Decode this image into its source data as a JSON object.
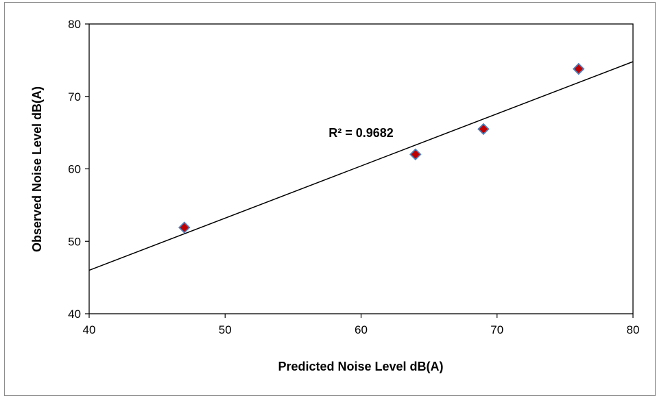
{
  "chart_data": {
    "type": "scatter",
    "xlabel": "Predicted Noise Level dB(A)",
    "ylabel": "Observed Noise Level dB(A)",
    "xlim": [
      40,
      80
    ],
    "ylim": [
      40,
      80
    ],
    "x_ticks": [
      40,
      50,
      60,
      70,
      80
    ],
    "y_ticks": [
      40,
      50,
      60,
      70,
      80
    ],
    "grid": false,
    "legend": "none",
    "series": [
      {
        "points": [
          {
            "x": 47,
            "y": 51.9
          },
          {
            "x": 64,
            "y": 62.0
          },
          {
            "x": 69,
            "y": 65.5
          },
          {
            "x": 76,
            "y": 73.8
          }
        ],
        "marker": "diamond",
        "marker_color": "#c00000",
        "marker_edge_color": "#4f81bd"
      }
    ],
    "trendline": {
      "type": "linear",
      "color": "#000000",
      "x_range": [
        40,
        80
      ],
      "y_range": [
        46.0,
        74.8
      ]
    },
    "annotations": [
      {
        "text": "R² = 0.9682",
        "x": 60,
        "y": 64.4
      }
    ]
  }
}
